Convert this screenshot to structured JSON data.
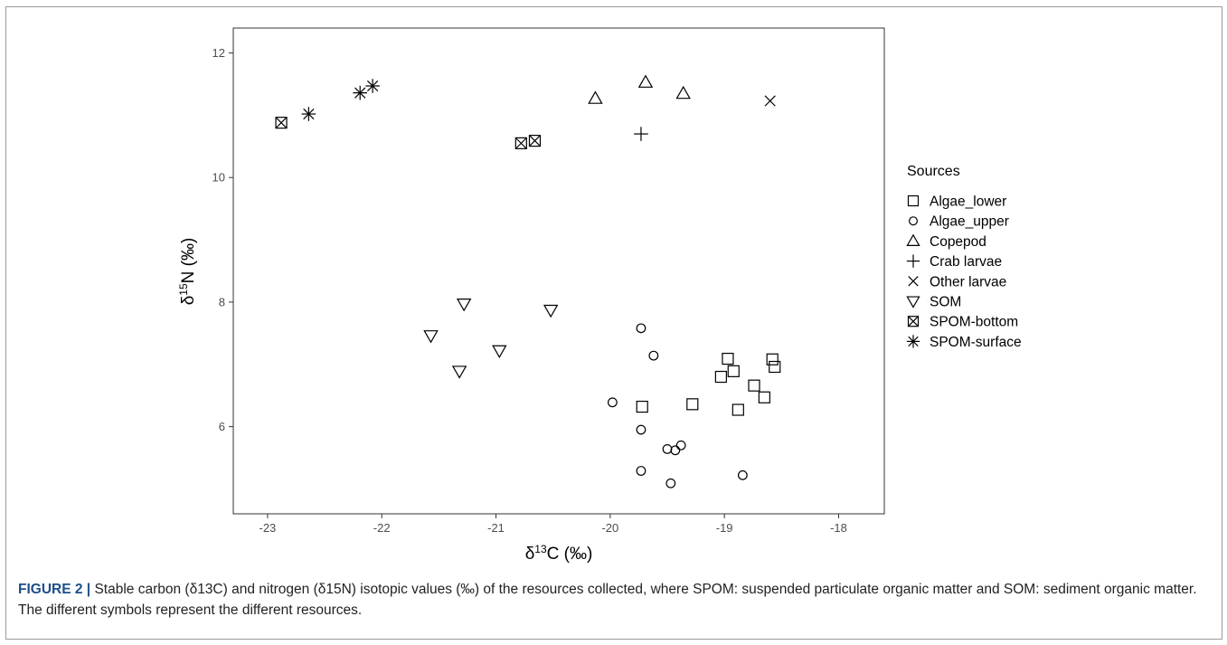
{
  "caption": {
    "label": "FIGURE 2",
    "separator": "|",
    "text": " Stable carbon (δ13C) and nitrogen (δ15N) isotopic values (‰) of the resources collected, where SPOM: suspended particulate organic matter and SOM: sediment organic matter. The different symbols represent the different resources."
  },
  "chart_data": {
    "type": "scatter",
    "title": "",
    "xlabel": "δ13C (‰)",
    "ylabel": "δ15N (‰)",
    "xlim": [
      -23.3,
      -17.6
    ],
    "ylim": [
      4.6,
      12.4
    ],
    "xticks": [
      -23,
      -22,
      -21,
      -20,
      -19,
      -18
    ],
    "yticks": [
      6,
      8,
      10,
      12
    ],
    "grid": false,
    "legend": {
      "title": "Sources",
      "placement": "right"
    },
    "series": [
      {
        "name": "Algae_lower",
        "marker": "square",
        "points": [
          [
            -19.72,
            6.32
          ],
          [
            -19.28,
            6.36
          ],
          [
            -19.03,
            6.8
          ],
          [
            -18.97,
            7.09
          ],
          [
            -18.92,
            6.89
          ],
          [
            -18.88,
            6.27
          ],
          [
            -18.74,
            6.66
          ],
          [
            -18.65,
            6.47
          ],
          [
            -18.58,
            7.08
          ],
          [
            -18.56,
            6.96
          ]
        ]
      },
      {
        "name": "Algae_upper",
        "marker": "circle",
        "points": [
          [
            -19.98,
            6.39
          ],
          [
            -19.73,
            7.58
          ],
          [
            -19.62,
            7.14
          ],
          [
            -19.73,
            5.95
          ],
          [
            -19.5,
            5.64
          ],
          [
            -19.43,
            5.62
          ],
          [
            -19.38,
            5.7
          ],
          [
            -19.73,
            5.29
          ],
          [
            -19.47,
            5.09
          ],
          [
            -18.84,
            5.22
          ]
        ]
      },
      {
        "name": "Copepod",
        "marker": "triangle-up",
        "points": [
          [
            -20.13,
            11.27
          ],
          [
            -19.69,
            11.53
          ],
          [
            -19.36,
            11.35
          ]
        ]
      },
      {
        "name": "Crab larvae",
        "marker": "plus",
        "points": [
          [
            -19.73,
            10.7
          ]
        ]
      },
      {
        "name": "Other larvae",
        "marker": "cross",
        "points": [
          [
            -18.6,
            11.23
          ]
        ]
      },
      {
        "name": "SOM",
        "marker": "triangle-down",
        "points": [
          [
            -21.57,
            7.46
          ],
          [
            -21.32,
            6.89
          ],
          [
            -21.28,
            7.97
          ],
          [
            -20.97,
            7.22
          ],
          [
            -20.52,
            7.87
          ]
        ]
      },
      {
        "name": "SPOM-bottom",
        "marker": "square-x",
        "points": [
          [
            -22.88,
            10.88
          ],
          [
            -20.78,
            10.55
          ],
          [
            -20.66,
            10.59
          ]
        ]
      },
      {
        "name": "SPOM-surface",
        "marker": "asterisk",
        "points": [
          [
            -22.64,
            11.02
          ],
          [
            -22.19,
            11.36
          ],
          [
            -22.08,
            11.47
          ]
        ]
      }
    ]
  }
}
